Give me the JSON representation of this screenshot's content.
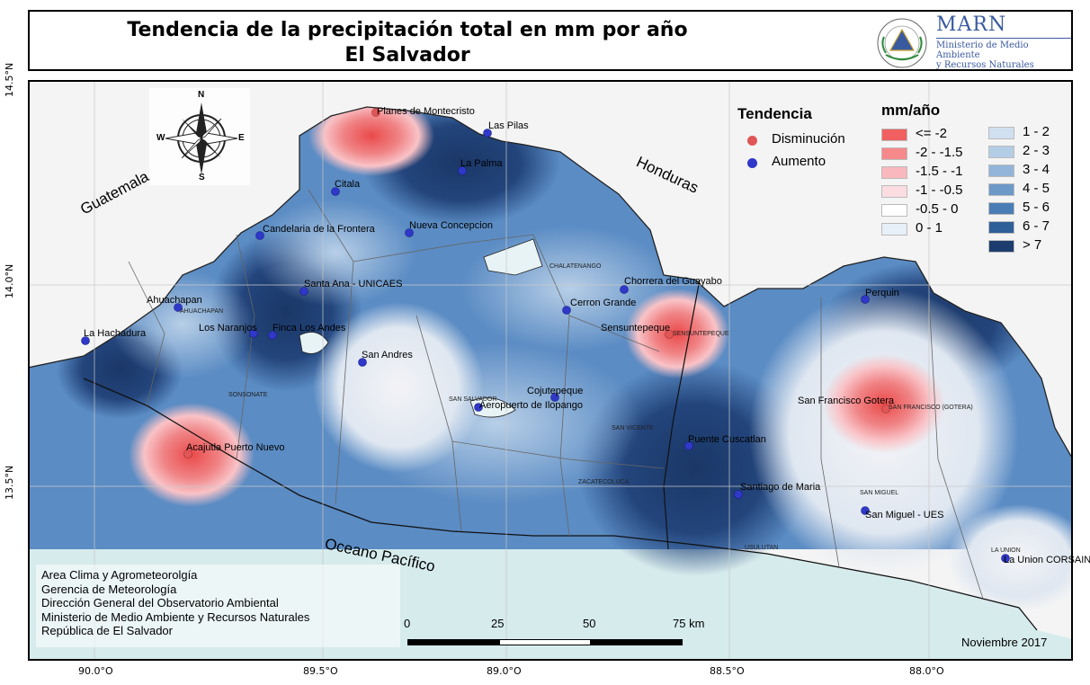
{
  "header": {
    "title_line1": "Tendencia de la precipitación total en mm por año",
    "title_line2": "El Salvador",
    "org_name": "MARN",
    "org_line1": "Ministerio de Medio Ambiente",
    "org_line2": "y Recursos Naturales"
  },
  "axes": {
    "lat_top": "14.5°N",
    "lat_mid": "14.0°N",
    "lat_bot": "13.5°N",
    "lon_1": "90.0°O",
    "lon_2": "89.5°O",
    "lon_3": "89.0°O",
    "lon_4": "88.5°O",
    "lon_5": "88.0°O"
  },
  "compass": {
    "n": "N",
    "s": "S",
    "e": "E",
    "w": "W"
  },
  "regions": {
    "guatemala": "Guatemala",
    "honduras": "Honduras",
    "ocean": "Oceano Pacífico"
  },
  "stations": [
    "Planes de Montecristo",
    "Las Pilas",
    "La Palma",
    "Citala",
    "Candelaria de la Frontera",
    "Nueva Concepcion",
    "Chorrera del Guayabo",
    "Cerron Grande",
    "Santa Ana - UNICAES",
    "Ahuachapan",
    "Los Naranjos",
    "Finca Los Andes",
    "La Hachadura",
    "San Andres",
    "Sensuntepeque",
    "Perquin",
    "Cojutepeque",
    "Aeropuerto de Ilopango",
    "Acajutla Puerto Nuevo",
    "Puente Cuscatlan",
    "San Francisco Gotera",
    "Santiago de Maria",
    "San Miguel - UES",
    "La Union CORSAIN"
  ],
  "departments": [
    "CHALATENANGO",
    "AHUACHAPAN",
    "SONSONATE",
    "SAN SALVADOR",
    "SAN VICENTE",
    "ZACATECOLUCA",
    "SENSUNTEPEQUE",
    "SAN FRANCISCO (GOTERA)",
    "SAN MIGUEL",
    "USULUTAN",
    "LA UNION"
  ],
  "legend": {
    "trend_title": "Tendencia",
    "decrease": "Disminución",
    "increase": "Aumento",
    "decrease_color": "#e05656",
    "increase_color": "#2f38c8",
    "unit_title": "mm/año",
    "classes": [
      {
        "label": "<= -2",
        "color": "#f06060"
      },
      {
        "label": "-2 - -1.5",
        "color": "#f5898b"
      },
      {
        "label": "-1.5 - -1",
        "color": "#f9b8bd"
      },
      {
        "label": "-1 - -0.5",
        "color": "#fbdde1"
      },
      {
        "label": "-0.5 - 0",
        "color": "#ffffff"
      },
      {
        "label": "0 - 1",
        "color": "#e7eff8"
      },
      {
        "label": "1 - 2",
        "color": "#d0e0f0"
      },
      {
        "label": "2 - 3",
        "color": "#b4cde6"
      },
      {
        "label": "3 - 4",
        "color": "#92b5d9"
      },
      {
        "label": "4 - 5",
        "color": "#6d99c8"
      },
      {
        "label": "5 - 6",
        "color": "#4a7db5"
      },
      {
        "label": "6 - 7",
        "color": "#2f5f99"
      },
      {
        "label": "> 7",
        "color": "#1d3d6e"
      }
    ]
  },
  "credits": [
    "Area Clima y Agrometeorolgía",
    "Gerencia de Meteorología",
    "Dirección General del Observatorio Ambiental",
    "Ministerio de Medio Ambiente y Recursos Naturales",
    "República de El Salvador"
  ],
  "scale": {
    "s0": "0",
    "s1": "25",
    "s2": "50",
    "s3": "75 km"
  },
  "date": "Noviembre 2017"
}
